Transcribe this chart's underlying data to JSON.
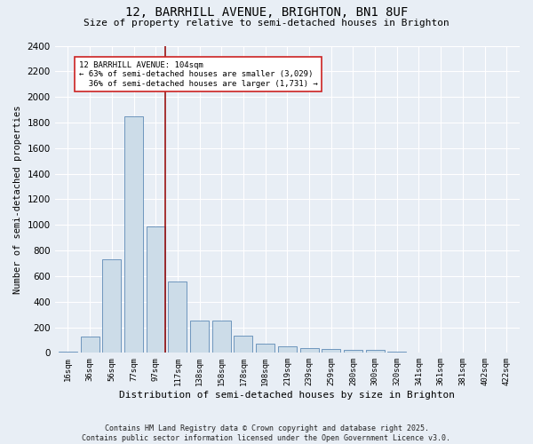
{
  "title_line1": "12, BARRHILL AVENUE, BRIGHTON, BN1 8UF",
  "title_line2": "Size of property relative to semi-detached houses in Brighton",
  "xlabel": "Distribution of semi-detached houses by size in Brighton",
  "ylabel": "Number of semi-detached properties",
  "footnote": "Contains HM Land Registry data © Crown copyright and database right 2025.\nContains public sector information licensed under the Open Government Licence v3.0.",
  "bin_labels": [
    "16sqm",
    "36sqm",
    "56sqm",
    "77sqm",
    "97sqm",
    "117sqm",
    "138sqm",
    "158sqm",
    "178sqm",
    "198sqm",
    "219sqm",
    "239sqm",
    "259sqm",
    "280sqm",
    "300sqm",
    "320sqm",
    "341sqm",
    "361sqm",
    "381sqm",
    "402sqm",
    "422sqm"
  ],
  "bar_values": [
    10,
    125,
    730,
    1850,
    990,
    555,
    250,
    250,
    135,
    70,
    50,
    35,
    30,
    25,
    20,
    10,
    5,
    5,
    2,
    2,
    1
  ],
  "bar_color": "#ccdce8",
  "bar_edge_color": "#4477aa",
  "property_label": "12 BARRHILL AVENUE: 104sqm",
  "pct_smaller": 63,
  "pct_larger": 36,
  "n_smaller": 3029,
  "n_larger": 1731,
  "vline_bin": 4,
  "vline_color": "#991111",
  "annotation_box_color": "#cc2222",
  "ylim": [
    0,
    2400
  ],
  "yticks": [
    0,
    200,
    400,
    600,
    800,
    1000,
    1200,
    1400,
    1600,
    1800,
    2000,
    2200,
    2400
  ],
  "bg_color": "#e8eef5",
  "plot_bg_color": "#e8eef5",
  "grid_color": "#ffffff",
  "title_fontsize": 10,
  "subtitle_fontsize": 8,
  "ylabel_fontsize": 7.5,
  "xlabel_fontsize": 8,
  "tick_fontsize": 6.5,
  "ytick_fontsize": 7.5,
  "annot_fontsize": 6.5,
  "footnote_fontsize": 6
}
